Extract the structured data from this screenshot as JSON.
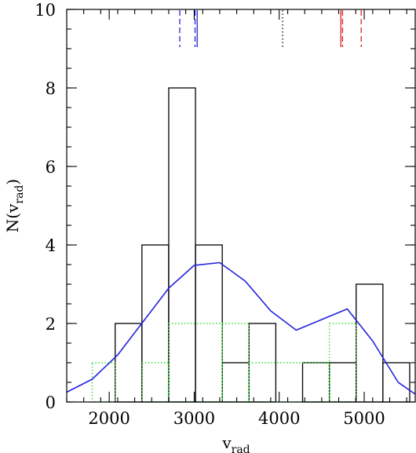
{
  "chart_data": {
    "type": "histogram",
    "title": "",
    "xlabel": {
      "main": "v",
      "sub": "rad"
    },
    "ylabel": {
      "main": "N(v",
      "sub": "rad",
      "close": ")"
    },
    "xlim": [
      1500,
      5600
    ],
    "ylim": [
      0,
      10
    ],
    "xticks": [
      2000,
      3000,
      4000,
      5000
    ],
    "xtick_labels": [
      "2000",
      "3000",
      "4000",
      "5000"
    ],
    "yticks": [
      0,
      2,
      4,
      6,
      8,
      10
    ],
    "ytick_labels": [
      "0",
      "2",
      "4",
      "6",
      "8",
      "10"
    ],
    "x_minor_step": 200,
    "y_minor_step": 0.5,
    "grid": false,
    "legend": "none",
    "series": [
      {
        "style": "solid-step",
        "color": "#000000",
        "bins": [
          {
            "x0": 2070,
            "x1": 2385,
            "count": 2
          },
          {
            "x0": 2385,
            "x1": 2700,
            "count": 4
          },
          {
            "x0": 2700,
            "x1": 3015,
            "count": 8
          },
          {
            "x0": 3015,
            "x1": 3330,
            "count": 4
          },
          {
            "x0": 3330,
            "x1": 3645,
            "count": 1
          },
          {
            "x0": 3645,
            "x1": 3960,
            "count": 2
          },
          {
            "x0": 3960,
            "x1": 4275,
            "count": 0
          },
          {
            "x0": 4275,
            "x1": 4590,
            "count": 1
          },
          {
            "x0": 4590,
            "x1": 4905,
            "count": 1
          },
          {
            "x0": 4905,
            "x1": 5220,
            "count": 3
          },
          {
            "x0": 5220,
            "x1": 5535,
            "count": 1
          }
        ]
      },
      {
        "style": "dotted-step",
        "color": "#33dd33",
        "bins": [
          {
            "x0": 1800,
            "x1": 2070,
            "count": 1
          },
          {
            "x0": 2070,
            "x1": 2385,
            "count": 0
          },
          {
            "x0": 2385,
            "x1": 2700,
            "count": 1
          },
          {
            "x0": 2700,
            "x1": 3330,
            "count": 2
          },
          {
            "x0": 3330,
            "x1": 3645,
            "count": 2
          },
          {
            "x0": 3645,
            "x1": 4590,
            "count": 1
          },
          {
            "x0": 4590,
            "x1": 4905,
            "count": 2
          }
        ]
      },
      {
        "style": "line",
        "color": "#2222dd",
        "x": [
          1500,
          1800,
          2100,
          2400,
          2700,
          3000,
          3300,
          3600,
          3900,
          4200,
          4500,
          4800,
          5100,
          5400,
          5600
        ],
        "y": [
          0.25,
          0.58,
          1.2,
          2.05,
          2.9,
          3.48,
          3.55,
          3.08,
          2.32,
          1.83,
          2.1,
          2.37,
          1.55,
          0.5,
          0.2
        ]
      }
    ],
    "markers": [
      {
        "x": 2830,
        "color": "#2222dd",
        "style": "dashed"
      },
      {
        "x": 3010,
        "color": "#2222dd",
        "style": "dashed"
      },
      {
        "x": 3035,
        "color": "#2222dd",
        "style": "solid"
      },
      {
        "x": 4040,
        "color": "#000000",
        "style": "dotted"
      },
      {
        "x": 4725,
        "color": "#dd2222",
        "style": "solid"
      },
      {
        "x": 4745,
        "color": "#dd2222",
        "style": "dashed"
      },
      {
        "x": 4965,
        "color": "#dd2222",
        "style": "dashed"
      }
    ]
  }
}
